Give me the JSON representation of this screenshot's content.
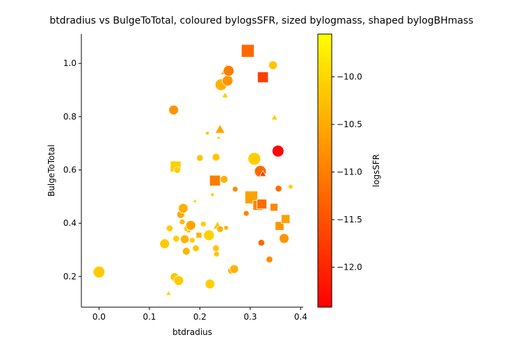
{
  "chart_data": {
    "type": "scatter",
    "title": "btdradius vs BulgeToTotal, coloured bylogsSFR, sized bylogmass, shaped bylogBHmass",
    "xlabel": "btdradius",
    "ylabel": "BulgeToTotal",
    "xlim": [
      -0.035,
      0.405
    ],
    "ylim": [
      0.085,
      1.11
    ],
    "xticks": [
      0.0,
      0.1,
      0.2,
      0.3,
      0.4
    ],
    "xtick_labels": [
      "0.0",
      "0.1",
      "0.2",
      "0.3",
      "0.4"
    ],
    "yticks": [
      0.2,
      0.4,
      0.6,
      0.8,
      1.0
    ],
    "ytick_labels": [
      "0.2",
      "0.4",
      "0.6",
      "0.8",
      "1.0"
    ],
    "grid": false,
    "colorbar": {
      "label": "logsSFR",
      "min": -12.42,
      "max": -9.55,
      "ticks": [
        -12.0,
        -11.5,
        -11.0,
        -10.5,
        -10.0
      ],
      "tick_labels": [
        "−12.0",
        "−11.5",
        "−11.0",
        "−10.5",
        "−10.0"
      ],
      "colormap": "autumn",
      "colors": [
        "#ff0000",
        "#ffff00"
      ]
    },
    "points": [
      {
        "x": 0.0,
        "y": 0.217,
        "c": -10.15,
        "s": 10,
        "m": "circle"
      },
      {
        "x": 0.13,
        "y": 0.323,
        "c": -10.15,
        "s": 8,
        "m": "circle"
      },
      {
        "x": 0.138,
        "y": 0.137,
        "c": -10.05,
        "s": 3,
        "m": "triangle"
      },
      {
        "x": 0.14,
        "y": 0.381,
        "c": -10.1,
        "s": 5,
        "m": "circle"
      },
      {
        "x": 0.148,
        "y": 0.825,
        "c": -10.75,
        "s": 8,
        "m": "circle"
      },
      {
        "x": 0.15,
        "y": 0.198,
        "c": -10.2,
        "s": 7,
        "m": "circle"
      },
      {
        "x": 0.152,
        "y": 0.613,
        "c": -10.1,
        "s": 9,
        "m": "square"
      },
      {
        "x": 0.153,
        "y": 0.342,
        "c": -10.1,
        "s": 5,
        "m": "circle"
      },
      {
        "x": 0.155,
        "y": 0.6,
        "c": -10.1,
        "s": 5,
        "m": "circle"
      },
      {
        "x": 0.158,
        "y": 0.185,
        "c": -10.15,
        "s": 8,
        "m": "circle"
      },
      {
        "x": 0.162,
        "y": 0.433,
        "c": -10.55,
        "s": 6,
        "m": "circle"
      },
      {
        "x": 0.165,
        "y": 0.405,
        "c": -10.3,
        "s": 4,
        "m": "circle"
      },
      {
        "x": 0.167,
        "y": 0.456,
        "c": -10.45,
        "s": 8,
        "m": "circle"
      },
      {
        "x": 0.17,
        "y": 0.34,
        "c": -10.4,
        "s": 7,
        "m": "circle"
      },
      {
        "x": 0.173,
        "y": 0.295,
        "c": -10.4,
        "s": 6,
        "m": "circle"
      },
      {
        "x": 0.175,
        "y": 0.38,
        "c": -10.2,
        "s": 5,
        "m": "circle"
      },
      {
        "x": 0.178,
        "y": 0.372,
        "c": -10.2,
        "s": 3,
        "m": "triangle"
      },
      {
        "x": 0.182,
        "y": 0.392,
        "c": -10.6,
        "s": 8,
        "m": "circle"
      },
      {
        "x": 0.185,
        "y": 0.336,
        "c": -10.1,
        "s": 4,
        "m": "circle"
      },
      {
        "x": 0.19,
        "y": 0.484,
        "c": -10.05,
        "s": 2,
        "m": "triangle"
      },
      {
        "x": 0.192,
        "y": 0.306,
        "c": -10.2,
        "s": 5,
        "m": "circle"
      },
      {
        "x": 0.198,
        "y": 0.355,
        "c": -10.4,
        "s": 4,
        "m": "square"
      },
      {
        "x": 0.2,
        "y": 0.645,
        "c": -10.2,
        "s": 5,
        "m": "circle"
      },
      {
        "x": 0.207,
        "y": 0.397,
        "c": -10.1,
        "s": 4,
        "m": "circle"
      },
      {
        "x": 0.215,
        "y": 0.738,
        "c": -10.2,
        "s": 2,
        "m": "circle"
      },
      {
        "x": 0.218,
        "y": 0.355,
        "c": -10.05,
        "s": 9,
        "m": "circle"
      },
      {
        "x": 0.22,
        "y": 0.172,
        "c": -10.1,
        "s": 8,
        "m": "circle"
      },
      {
        "x": 0.225,
        "y": 0.507,
        "c": -10.1,
        "s": 2,
        "m": "circle"
      },
      {
        "x": 0.23,
        "y": 0.56,
        "c": -11.0,
        "s": 9,
        "m": "square"
      },
      {
        "x": 0.232,
        "y": 0.648,
        "c": -10.2,
        "s": 6,
        "m": "circle"
      },
      {
        "x": 0.232,
        "y": 0.306,
        "c": -10.2,
        "s": 5,
        "m": "circle"
      },
      {
        "x": 0.233,
        "y": 0.284,
        "c": -10.2,
        "s": 4,
        "m": "circle"
      },
      {
        "x": 0.235,
        "y": 0.391,
        "c": -10.2,
        "s": 6,
        "m": "triangle"
      },
      {
        "x": 0.237,
        "y": 0.722,
        "c": -10.1,
        "s": 2,
        "m": "triangle"
      },
      {
        "x": 0.24,
        "y": 0.752,
        "c": -10.55,
        "s": 7,
        "m": "triangle"
      },
      {
        "x": 0.24,
        "y": 0.378,
        "c": -10.4,
        "s": 5,
        "m": "circle"
      },
      {
        "x": 0.242,
        "y": 0.92,
        "c": -10.4,
        "s": 10,
        "m": "circle"
      },
      {
        "x": 0.248,
        "y": 0.565,
        "c": -10.4,
        "s": 6,
        "m": "circle"
      },
      {
        "x": 0.25,
        "y": 0.88,
        "c": -10.1,
        "s": 4,
        "m": "triangle"
      },
      {
        "x": 0.252,
        "y": 0.383,
        "c": -10.4,
        "s": 3,
        "m": "circle"
      },
      {
        "x": 0.253,
        "y": 0.975,
        "c": -10.45,
        "s": 9,
        "m": "triangle"
      },
      {
        "x": 0.255,
        "y": 0.935,
        "c": -10.75,
        "s": 9,
        "m": "circle"
      },
      {
        "x": 0.257,
        "y": 0.972,
        "c": -11.0,
        "s": 9,
        "m": "circle"
      },
      {
        "x": 0.262,
        "y": 0.222,
        "c": -10.55,
        "s": 5,
        "m": "circle"
      },
      {
        "x": 0.268,
        "y": 0.228,
        "c": -10.4,
        "s": 7,
        "m": "circle"
      },
      {
        "x": 0.27,
        "y": 0.528,
        "c": -10.85,
        "s": 4,
        "m": "circle"
      },
      {
        "x": 0.292,
        "y": 0.437,
        "c": -10.95,
        "s": 4,
        "m": "circle"
      },
      {
        "x": 0.295,
        "y": 1.047,
        "c": -11.25,
        "s": 11,
        "m": "square"
      },
      {
        "x": 0.297,
        "y": 0.497,
        "c": -10.6,
        "s": 5,
        "m": "triangle"
      },
      {
        "x": 0.302,
        "y": 0.497,
        "c": -10.6,
        "s": 11,
        "m": "square"
      },
      {
        "x": 0.308,
        "y": 0.642,
        "c": -10.1,
        "s": 11,
        "m": "circle"
      },
      {
        "x": 0.315,
        "y": 0.467,
        "c": -10.9,
        "s": 8,
        "m": "square"
      },
      {
        "x": 0.32,
        "y": 0.595,
        "c": -11.25,
        "s": 10,
        "m": "circle"
      },
      {
        "x": 0.322,
        "y": 0.327,
        "c": -11.25,
        "s": 5,
        "m": "circle"
      },
      {
        "x": 0.323,
        "y": 0.472,
        "c": -11.2,
        "s": 8,
        "m": "square"
      },
      {
        "x": 0.325,
        "y": 0.948,
        "c": -11.75,
        "s": 9,
        "m": "square"
      },
      {
        "x": 0.325,
        "y": 0.585,
        "c": -11.75,
        "s": 4,
        "m": "triangle"
      },
      {
        "x": 0.338,
        "y": 0.264,
        "c": -10.85,
        "s": 5,
        "m": "circle"
      },
      {
        "x": 0.345,
        "y": 0.993,
        "c": -10.2,
        "s": 7,
        "m": "circle"
      },
      {
        "x": 0.347,
        "y": 0.46,
        "c": -10.9,
        "s": 6,
        "m": "square"
      },
      {
        "x": 0.348,
        "y": 0.797,
        "c": -10.1,
        "s": 4,
        "m": "triangle"
      },
      {
        "x": 0.355,
        "y": 0.671,
        "c": -12.35,
        "s": 10,
        "m": "circle"
      },
      {
        "x": 0.356,
        "y": 0.53,
        "c": -11.2,
        "s": 5,
        "m": "circle"
      },
      {
        "x": 0.358,
        "y": 0.39,
        "c": -10.75,
        "s": 7,
        "m": "square"
      },
      {
        "x": 0.367,
        "y": 0.343,
        "c": -10.75,
        "s": 8,
        "m": "circle"
      },
      {
        "x": 0.37,
        "y": 0.416,
        "c": -10.6,
        "s": 7,
        "m": "square"
      },
      {
        "x": 0.38,
        "y": 0.537,
        "c": -10.1,
        "s": 3,
        "m": "circle"
      }
    ]
  }
}
